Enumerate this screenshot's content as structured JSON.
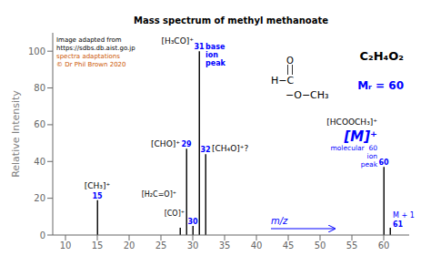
{
  "chart_data": {
    "type": "bar",
    "title": "Mass spectrum of methyl methanoate",
    "x_label": "m/z",
    "y_label": "Relative Intensity",
    "x": [
      15,
      28,
      29,
      30,
      31,
      32,
      60,
      61
    ],
    "values": [
      19,
      4,
      47,
      5,
      100,
      44,
      37,
      4
    ],
    "color": "#111111",
    "xlim": [
      8,
      64
    ],
    "ylim": [
      0,
      110
    ],
    "xticks": [
      10,
      15,
      20,
      25,
      30,
      35,
      40,
      45,
      50,
      55,
      60
    ],
    "yticks": [
      0,
      20,
      40,
      60,
      80,
      100
    ],
    "annotations": [
      {
        "text": "[CH₃]⁺",
        "x": 15,
        "color": "black"
      },
      {
        "text": "15",
        "x": 15,
        "color": "blue"
      },
      {
        "text": "[H₂C=O]⁺",
        "x": 28,
        "color": "black"
      },
      {
        "text": "[CHO]⁺",
        "x": 29,
        "color": "black"
      },
      {
        "text": "29",
        "x": 29,
        "color": "blue"
      },
      {
        "text": "[CO]⁺",
        "x": 30,
        "color": "black"
      },
      {
        "text": "30",
        "x": 30,
        "color": "blue"
      },
      {
        "text": "[H₃CO]⁺",
        "x": 31,
        "color": "black"
      },
      {
        "text": "31",
        "x": 31,
        "color": "blue"
      },
      {
        "text": "base\nion\npeak",
        "x": 31,
        "color": "blue"
      },
      {
        "text": "[CH₄O]⁺?",
        "x": 32,
        "color": "black"
      },
      {
        "text": "32",
        "x": 32,
        "color": "blue"
      },
      {
        "text": "[HCOOCH₃]⁺",
        "x": 60,
        "color": "black"
      },
      {
        "text": "[M]⁺",
        "x": 60,
        "color": "blue"
      },
      {
        "text": "molecular  60\nion\npeak",
        "x": 60,
        "color": "blue"
      },
      {
        "text": "60",
        "x": 60,
        "color": "blue"
      },
      {
        "text": "M + 1",
        "x": 61,
        "color": "blue"
      },
      {
        "text": "61",
        "x": 61,
        "color": "blue"
      },
      {
        "text": "Image adapted from",
        "color": "black"
      },
      {
        "text": "https://sdbs.db.aist.go.jp",
        "color": "black"
      },
      {
        "text": "spectra adaptations",
        "color": "#cc5500"
      },
      {
        "text": "© Dr Phil Brown 2020",
        "color": "#cc5500"
      },
      {
        "text": "H−C",
        "color": "black"
      },
      {
        "text": "O",
        "color": "black"
      },
      {
        "text": "−O−CH₃",
        "color": "black"
      },
      {
        "text": "C₂H₄O₂",
        "color": "black"
      },
      {
        "text": "Mᵣ = 60",
        "color": "blue"
      }
    ]
  }
}
